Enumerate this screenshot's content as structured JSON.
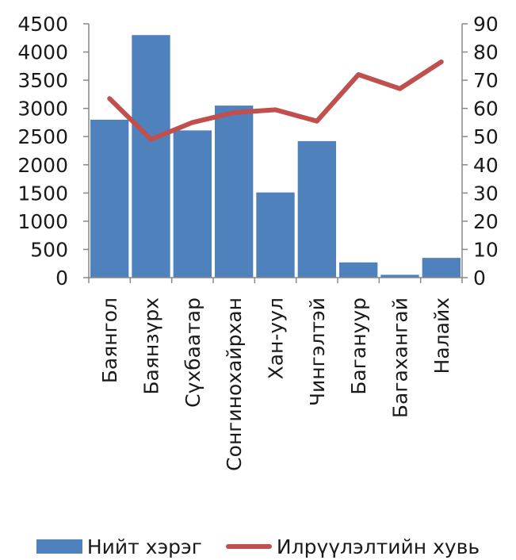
{
  "colors": {
    "bars": "#4F81BD",
    "line": "#C0504D",
    "axis": "#888888",
    "text": "#1a1a1a"
  },
  "chart_data": {
    "type": "bar",
    "categories": [
      "Баянгол",
      "Баянзүрх",
      "Сүхбаатар",
      "Сонгинохайрхан",
      "Хан-уул",
      "Чингэлтэй",
      "Багануур",
      "Багахангай",
      "Налайх"
    ],
    "series": [
      {
        "name": "Нийт хэрэг",
        "type": "bar",
        "axis": "left",
        "values": [
          2800,
          4300,
          2610,
          3050,
          1510,
          2420,
          270,
          50,
          350
        ]
      },
      {
        "name": "Илрүүлэлтийн хувь",
        "type": "line",
        "axis": "right",
        "values": [
          63.5,
          49,
          55,
          58.5,
          59.5,
          55.5,
          72,
          67,
          76.5
        ]
      }
    ],
    "ylim_left": [
      0,
      4500
    ],
    "ylim_right": [
      0,
      90
    ],
    "yticks_left": [
      "0",
      "500",
      "1000",
      "1500",
      "2000",
      "2500",
      "3000",
      "3500",
      "4000",
      "4500"
    ],
    "yticks_right": [
      "0",
      "10",
      "20",
      "30",
      "40",
      "50",
      "60",
      "70",
      "80",
      "90"
    ],
    "grid": false,
    "legend_position": "bottom"
  },
  "legend": {
    "bar_label": "Нийт хэрэг",
    "line_label": "Илрүүлэлтийн хувь"
  }
}
